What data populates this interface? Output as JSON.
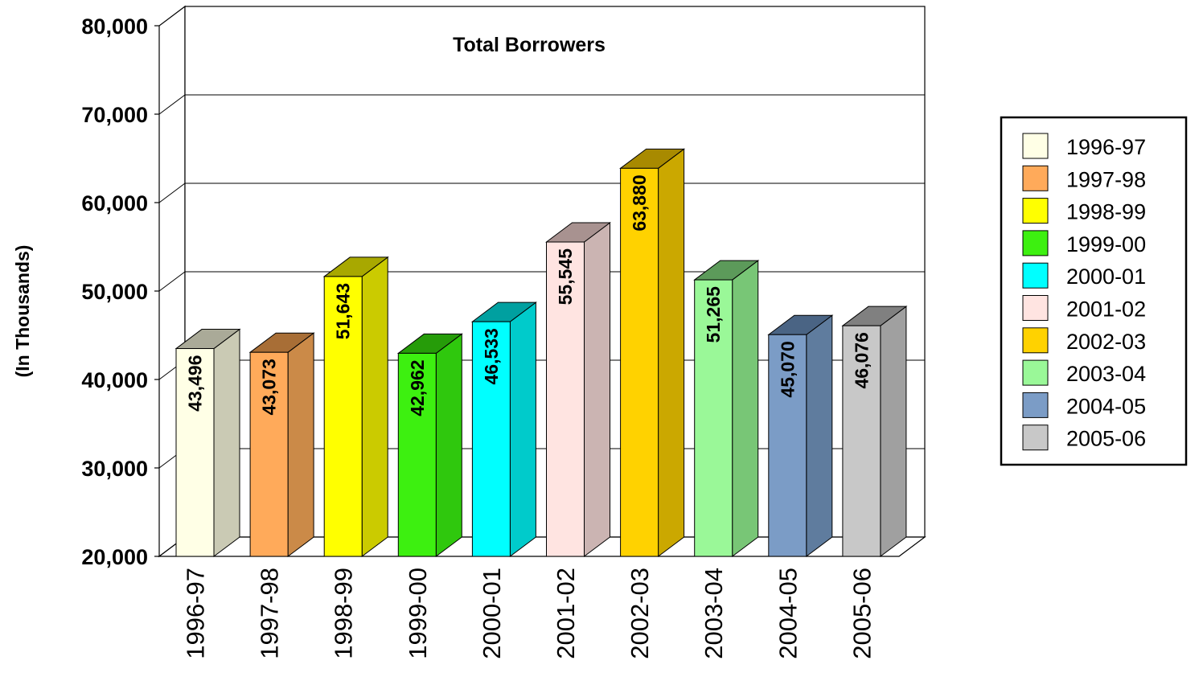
{
  "chart_data": {
    "type": "bar",
    "title": "Total Borrowers",
    "ylabel": "(In Thousands)",
    "xlabel": "",
    "ylim": [
      20000,
      80000
    ],
    "yticks": [
      20000,
      30000,
      40000,
      50000,
      60000,
      70000,
      80000
    ],
    "ytick_labels": [
      "20,000",
      "30,000",
      "40,000",
      "50,000",
      "60,000",
      "70,000",
      "80,000"
    ],
    "grid": true,
    "legend": "right",
    "style": "3d-bar",
    "categories": [
      "1996-97",
      "1997-98",
      "1998-99",
      "1999-00",
      "2000-01",
      "2001-02",
      "2002-03",
      "2003-04",
      "2004-05",
      "2005-06"
    ],
    "values": [
      43496,
      43073,
      51643,
      42962,
      46533,
      55545,
      63880,
      51265,
      45070,
      46076
    ],
    "value_labels": [
      "43,496",
      "43,073",
      "51,643",
      "42,962",
      "46,533",
      "55,545",
      "63,880",
      "51,265",
      "45,070",
      "46,076"
    ],
    "colors": [
      "#FFFFE6",
      "#FFAA5A",
      "#FFFF00",
      "#3DF010",
      "#00FFFF",
      "#FFE4E1",
      "#FFD200",
      "#9AF898",
      "#7B9CC6",
      "#C8C8C8"
    ],
    "side_colors": [
      "#CACAB4",
      "#CB8A48",
      "#CBCB00",
      "#2FC80D",
      "#00CBCB",
      "#CBB4B2",
      "#CBA800",
      "#78C676",
      "#5F7C9E",
      "#A0A0A0"
    ],
    "top_colors": [
      "#AAAA98",
      "#A86E36",
      "#A8A800",
      "#269C09",
      "#00A0A0",
      "#A89290",
      "#A88A00",
      "#5C9A5A",
      "#4A6484",
      "#808080"
    ]
  }
}
